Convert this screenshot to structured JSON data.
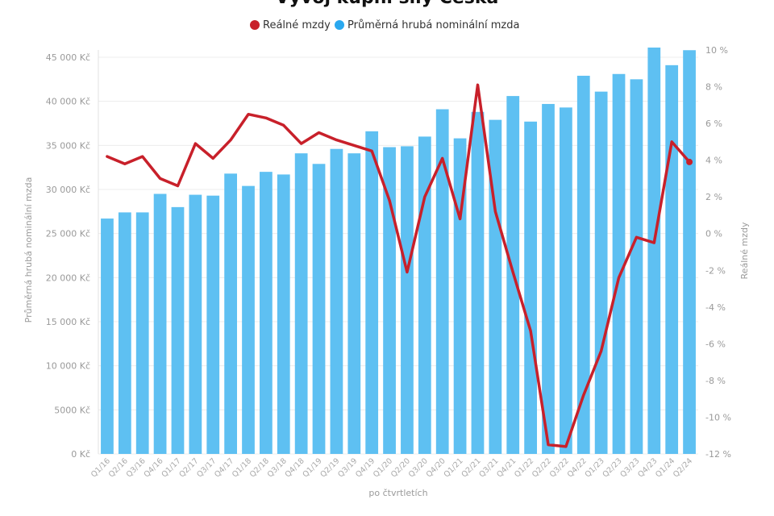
{
  "title": "Vývoj kupní síly Česka",
  "legend": {
    "items": [
      {
        "label": "Reálné mzdy",
        "color": "#c8202a"
      },
      {
        "label": "Průměrná hrubá nominální mzda",
        "color": "#2aa8ef"
      }
    ],
    "placement": "top-center"
  },
  "axes": {
    "left_title": "Průměrná hrubá nominální mzda",
    "right_title": "Reálné mzdy",
    "bottom_title": "po čtvrtletích",
    "left_ticks": [
      "0 Kč",
      "5000 Kč",
      "10 000 Kč",
      "15 000 Kč",
      "20 000 Kč",
      "25 000 Kč",
      "30 000 Kč",
      "35 000 Kč",
      "40 000 Kč",
      "45 000 Kč"
    ],
    "right_ticks": [
      "-12 %",
      "-10 %",
      "-8 %",
      "-6 %",
      "-4 %",
      "-2 %",
      "0 %",
      "2 %",
      "4 %",
      "6 %",
      "8 %",
      "10 %"
    ]
  },
  "chart_data": {
    "type": "bar",
    "categories": [
      "Q1/16",
      "Q2/16",
      "Q3/16",
      "Q4/16",
      "Q1/17",
      "Q2/17",
      "Q3/17",
      "Q4/17",
      "Q1/18",
      "Q2/18",
      "Q3/18",
      "Q4/18",
      "Q1/19",
      "Q2/19",
      "Q3/19",
      "Q4/19",
      "Q1/20",
      "Q2/20",
      "Q3/20",
      "Q4/20",
      "Q1/21",
      "Q2/21",
      "Q3/21",
      "Q4/21",
      "Q1/22",
      "Q2/22",
      "Q3/22",
      "Q4/22",
      "Q1/23",
      "Q2/23",
      "Q3/23",
      "Q4/23",
      "Q1/24",
      "Q2/24"
    ],
    "series": [
      {
        "name": "Průměrná hrubá nominální mzda",
        "type": "bar",
        "axis": "left",
        "color": "#5ec0f2",
        "values": [
          26700,
          27400,
          27400,
          29500,
          28000,
          29400,
          29300,
          31800,
          30400,
          32000,
          31700,
          34100,
          32900,
          34600,
          34100,
          36600,
          34800,
          34900,
          36000,
          39100,
          35800,
          38800,
          37900,
          40600,
          37700,
          39700,
          39300,
          42900,
          41100,
          43100,
          42500,
          46100,
          44100,
          45800
        ]
      },
      {
        "name": "Reálné mzdy",
        "type": "line",
        "axis": "right",
        "color": "#c8202a",
        "values": [
          4.2,
          3.8,
          4.2,
          3.0,
          2.6,
          4.9,
          4.1,
          5.1,
          6.5,
          6.3,
          5.9,
          4.9,
          5.5,
          5.1,
          4.8,
          4.5,
          1.8,
          -2.1,
          2.0,
          4.1,
          0.8,
          8.1,
          1.2,
          -2.1,
          -5.3,
          -11.5,
          -11.6,
          -8.8,
          -6.4,
          -2.4,
          -0.2,
          -0.5,
          5.0,
          3.9
        ]
      }
    ],
    "ylim_left": [
      0,
      45000
    ],
    "ylim_right": [
      -12,
      10
    ],
    "grid": true
  }
}
